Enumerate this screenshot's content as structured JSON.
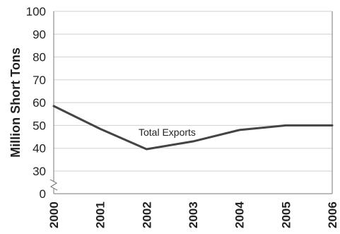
{
  "chart_data": {
    "type": "line",
    "xlabel": "",
    "ylabel": "Million Short Tons",
    "x": [
      "2000",
      "2001",
      "2002",
      "2003",
      "2004",
      "2005",
      "2006"
    ],
    "series": [
      {
        "name": "Total Exports",
        "values": [
          58.5,
          48.5,
          39.6,
          43,
          48,
          50,
          50
        ]
      }
    ],
    "ylim": [
      0,
      100
    ],
    "y_ticks": [
      "0",
      "30",
      "40",
      "50",
      "60",
      "70",
      "80",
      "90",
      "100"
    ],
    "axis_break": true,
    "grid": true,
    "annotation": {
      "text": "Total Exports",
      "attached_to": "series"
    },
    "colors": {
      "line": "#444444",
      "grid": "#d0d0d0"
    }
  }
}
